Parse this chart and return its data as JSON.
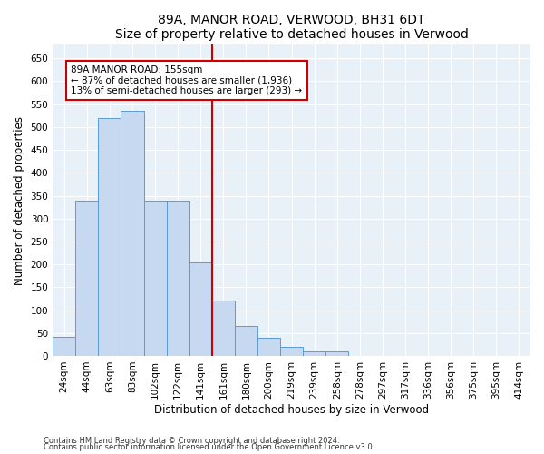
{
  "title": "89A, MANOR ROAD, VERWOOD, BH31 6DT",
  "subtitle": "Size of property relative to detached houses in Verwood",
  "xlabel": "Distribution of detached houses by size in Verwood",
  "ylabel": "Number of detached properties",
  "categories": [
    "24sqm",
    "44sqm",
    "63sqm",
    "83sqm",
    "102sqm",
    "122sqm",
    "141sqm",
    "161sqm",
    "180sqm",
    "200sqm",
    "219sqm",
    "239sqm",
    "258sqm",
    "278sqm",
    "297sqm",
    "317sqm",
    "336sqm",
    "356sqm",
    "375sqm",
    "395sqm",
    "414sqm"
  ],
  "values": [
    42,
    340,
    520,
    535,
    340,
    340,
    205,
    120,
    65,
    40,
    20,
    10,
    10,
    0,
    0,
    0,
    0,
    0,
    0,
    0,
    0
  ],
  "bar_color": "#c6d9f1",
  "bar_edge_color": "#5b9bd5",
  "vline_color": "#cc0000",
  "annotation_line1": "89A MANOR ROAD: 155sqm",
  "annotation_line2": "← 87% of detached houses are smaller (1,936)",
  "annotation_line3": "13% of semi-detached houses are larger (293) →",
  "annotation_box_color": "#ffffff",
  "annotation_box_edge": "#cc0000",
  "ylim": [
    0,
    680
  ],
  "yticks": [
    0,
    50,
    100,
    150,
    200,
    250,
    300,
    350,
    400,
    450,
    500,
    550,
    600,
    650
  ],
  "footer1": "Contains HM Land Registry data © Crown copyright and database right 2024.",
  "footer2": "Contains public sector information licensed under the Open Government Licence v3.0.",
  "plot_background": "#e8f0f8",
  "title_fontsize": 10,
  "axis_label_fontsize": 8.5,
  "tick_fontsize": 7.5,
  "annotation_fontsize": 7.5
}
